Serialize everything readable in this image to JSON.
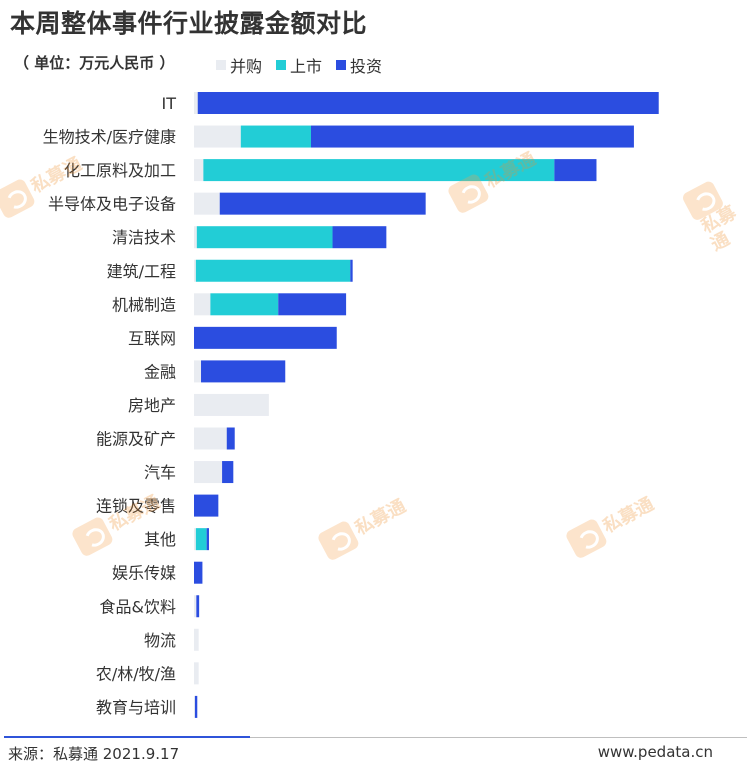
{
  "title": "本周整体事件行业披露金额对比",
  "unit_label": "（ 单位：万元人民币 ）",
  "colors": {
    "merger": "#e9ecf1",
    "ipo": "#22cdd6",
    "investment": "#2b4de0"
  },
  "watermark": {
    "text": "私募通",
    "sub": "www.pedata.cn"
  },
  "footer": {
    "source": "来源：私募通 2021.9.17",
    "site": "www.pedata.cn"
  },
  "chart_data": {
    "type": "bar",
    "orientation": "horizontal",
    "stacked": true,
    "title": "本周整体事件行业披露金额对比",
    "xlabel": "",
    "ylabel": "",
    "legend_position": "top",
    "grid": false,
    "x_axis_visible": false,
    "categories": [
      "IT",
      "生物技术/医疗健康",
      "化工原料及加工",
      "半导体及电子设备",
      "清洁技术",
      "建筑/工程",
      "机械制造",
      "互联网",
      "金融",
      "房地产",
      "能源及矿产",
      "汽车",
      "连锁及零售",
      "其他",
      "娱乐传媒",
      "食品&饮料",
      "物流",
      "农/林/牧/渔",
      "教育与培训"
    ],
    "series": [
      {
        "name": "并购",
        "values": [
          0.8,
          10,
          2,
          5.5,
          0.6,
          0.4,
          3.5,
          0,
          1.5,
          16,
          7,
          6,
          0,
          0.4,
          0,
          0.5,
          1,
          1,
          0.2
        ]
      },
      {
        "name": "上市",
        "values": [
          0,
          15,
          75,
          0,
          29,
          33,
          14.5,
          0,
          0,
          0,
          0,
          0,
          0,
          2.3,
          0,
          0,
          0,
          0,
          0
        ]
      },
      {
        "name": "投资",
        "values": [
          98.5,
          69,
          9,
          44,
          11.5,
          0.5,
          14.5,
          30.5,
          18,
          0,
          1.7,
          2.4,
          5.2,
          0.5,
          1.8,
          0.6,
          0,
          0,
          0.5
        ]
      }
    ],
    "xlim": [
      0,
      100
    ]
  }
}
